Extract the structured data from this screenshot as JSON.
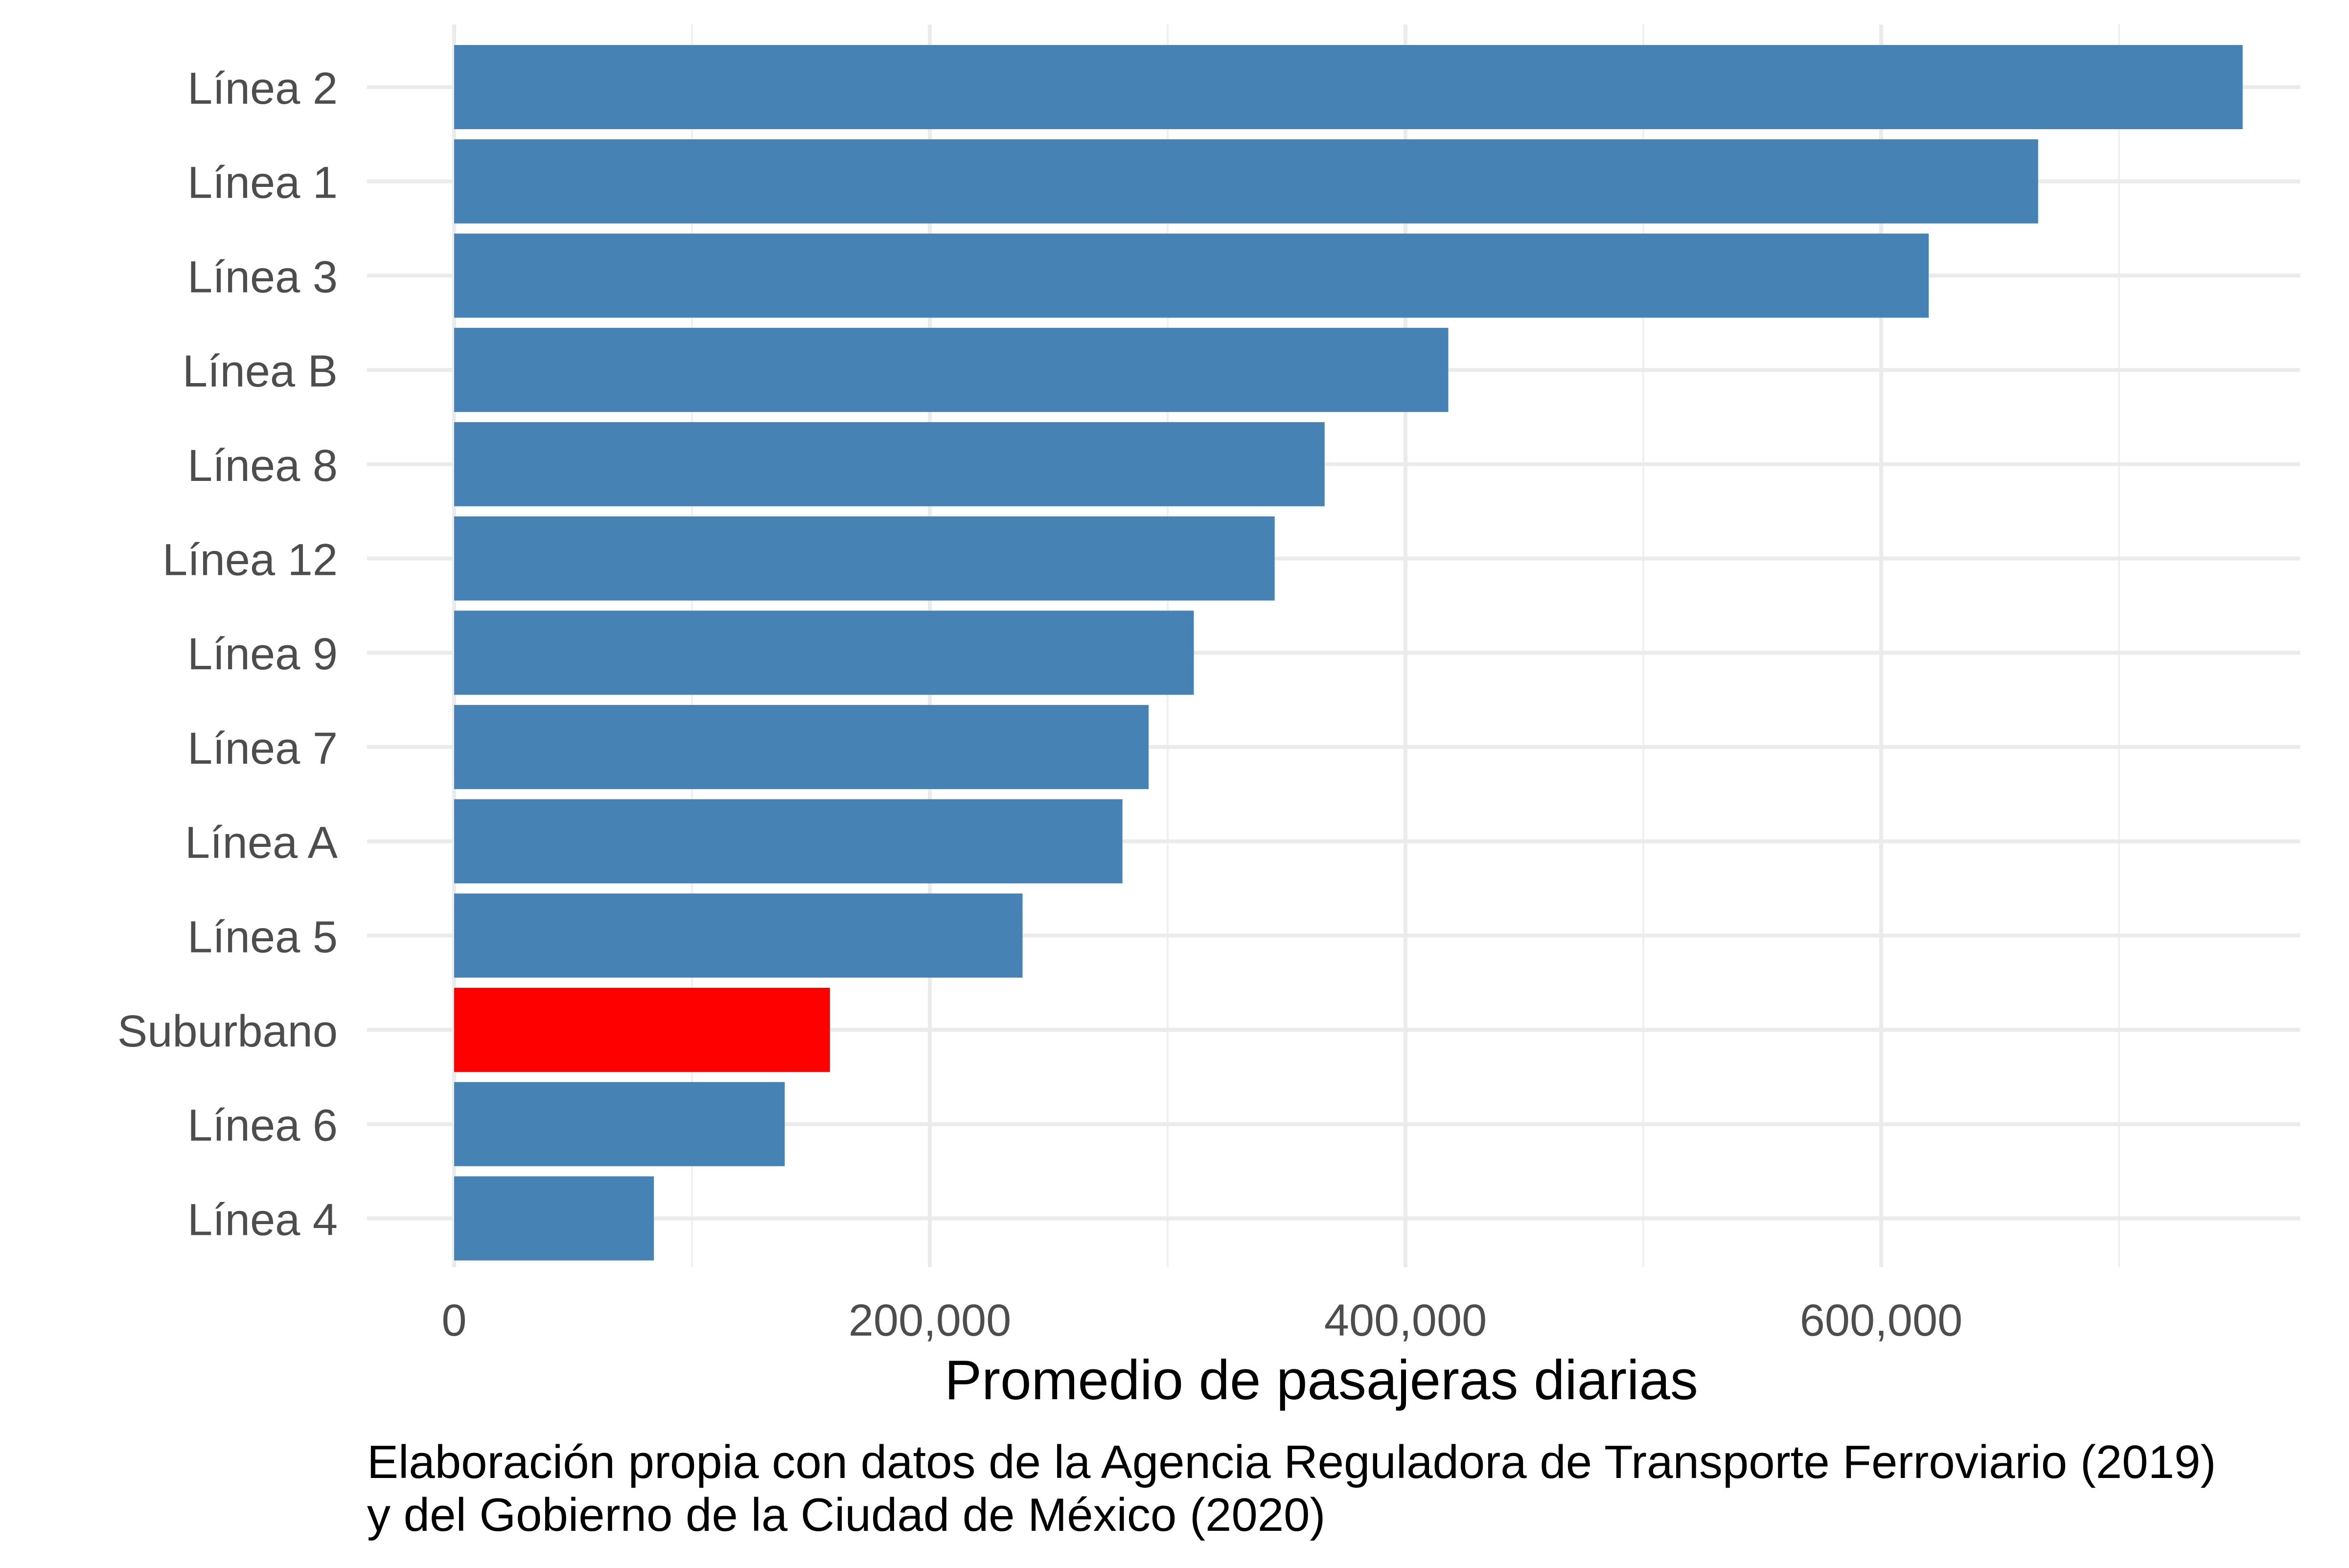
{
  "chart_data": {
    "type": "bar",
    "orientation": "horizontal",
    "title": "",
    "xlabel": "Promedio de pasajeras diarias",
    "ylabel": "",
    "xlim": [
      0,
      800000
    ],
    "x_ticks": [
      0,
      200000,
      400000,
      600000
    ],
    "x_tick_labels": [
      "0",
      "200,000",
      "400,000",
      "600,000"
    ],
    "grid": true,
    "categories": [
      "Línea 2",
      "Línea 1",
      "Línea 3",
      "Línea B",
      "Línea 8",
      "Línea 12",
      "Línea 9",
      "Línea 7",
      "Línea A",
      "Línea 5",
      "Suburbano",
      "Línea 6",
      "Línea 4"
    ],
    "values": [
      752000,
      666000,
      620000,
      418000,
      366000,
      345000,
      311000,
      292000,
      281000,
      239000,
      158000,
      139000,
      84000
    ],
    "highlight": "Suburbano",
    "bar_color": "#4682b4",
    "highlight_color": "#ff0000",
    "caption": "Elaboración propia con datos de la Agencia Reguladora de Transporte Ferroviario (2019)\ny del Gobierno de la Ciudad de México (2020)"
  }
}
